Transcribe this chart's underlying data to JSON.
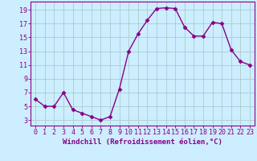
{
  "x": [
    0,
    1,
    2,
    3,
    4,
    5,
    6,
    7,
    8,
    9,
    10,
    11,
    12,
    13,
    14,
    15,
    16,
    17,
    18,
    19,
    20,
    21,
    22,
    23
  ],
  "y": [
    6,
    5,
    5,
    7,
    4.5,
    4,
    3.5,
    3,
    3.5,
    7.5,
    13,
    15.5,
    17.5,
    19.2,
    19.3,
    19.2,
    16.5,
    15.2,
    15.2,
    17.2,
    17,
    13.2,
    11.5,
    11
  ],
  "line_color": "#880088",
  "marker": "D",
  "marker_size": 2.5,
  "line_width": 1.0,
  "background_color": "#cceeff",
  "grid_color": "#aacccc",
  "xlabel": "Windchill (Refroidissement éolien,°C)",
  "xlabel_fontsize": 6.5,
  "xlabel_color": "#880088",
  "xtick_labels": [
    "0",
    "1",
    "2",
    "3",
    "4",
    "5",
    "6",
    "7",
    "8",
    "9",
    "10",
    "11",
    "12",
    "13",
    "14",
    "15",
    "16",
    "17",
    "18",
    "19",
    "20",
    "21",
    "22",
    "23"
  ],
  "ytick_labels": [
    "3",
    "5",
    "7",
    "9",
    "11",
    "13",
    "15",
    "17",
    "19"
  ],
  "ytick_values": [
    3,
    5,
    7,
    9,
    11,
    13,
    15,
    17,
    19
  ],
  "ylim": [
    2.2,
    20.2
  ],
  "xlim": [
    -0.5,
    23.5
  ],
  "tick_color": "#880088",
  "tick_fontsize": 6.0,
  "spine_color": "#880088"
}
